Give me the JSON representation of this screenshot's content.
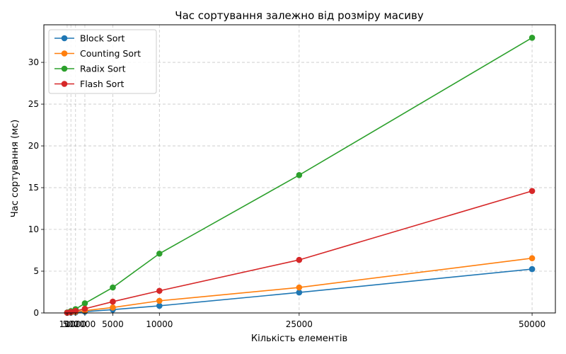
{
  "chart_data": {
    "type": "line",
    "title": "Час сортування залежно від розміру масиву",
    "xlabel": "Кількість елементів",
    "ylabel": "Час сортування (мс)",
    "x": [
      100,
      500,
      1000,
      2000,
      5000,
      10000,
      25000,
      50000
    ],
    "x_tick_labels": [
      "100",
      "500",
      "1000",
      "2000",
      "5000",
      "10000",
      "25000",
      "50000"
    ],
    "y_ticks": [
      0,
      5,
      10,
      15,
      20,
      25,
      30
    ],
    "xlim": [
      -2400,
      52500
    ],
    "ylim": [
      0,
      34.5
    ],
    "grid": true,
    "legend_position": "top-left",
    "series": [
      {
        "name": "Block Sort",
        "color": "#1f77b4",
        "values": [
          0.01,
          0.04,
          0.07,
          0.15,
          0.4,
          0.85,
          2.45,
          5.25
        ]
      },
      {
        "name": "Counting Sort",
        "color": "#ff7f0e",
        "values": [
          0.02,
          0.08,
          0.14,
          0.28,
          0.65,
          1.45,
          3.05,
          6.55
        ]
      },
      {
        "name": "Radix Sort",
        "color": "#2ca02c",
        "values": [
          0.06,
          0.22,
          0.45,
          1.15,
          3.05,
          7.1,
          16.5,
          32.95
        ]
      },
      {
        "name": "Flash Sort",
        "color": "#d62728",
        "values": [
          0.03,
          0.12,
          0.25,
          0.5,
          1.35,
          2.65,
          6.35,
          14.6
        ]
      }
    ]
  }
}
